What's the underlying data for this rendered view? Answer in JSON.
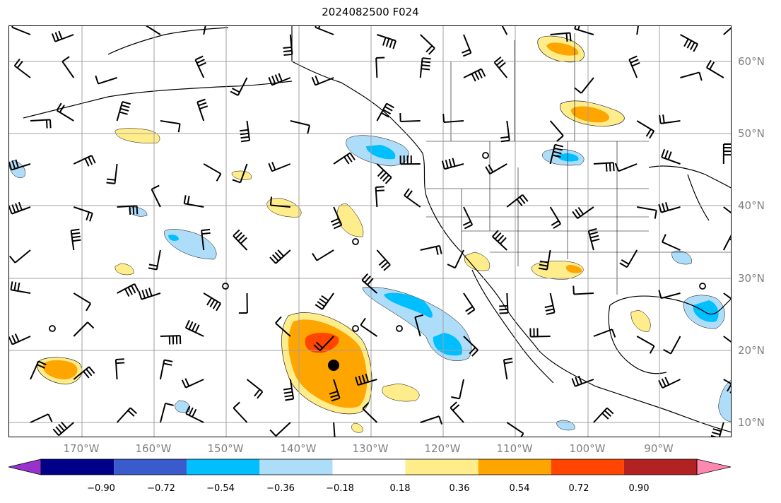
{
  "title": "2024082500 F024",
  "lat_labels": [
    "60°N",
    "50°N",
    "40°N",
    "30°N",
    "20°N",
    "10°N"
  ],
  "lon_labels": [
    "170°W",
    "160°W",
    "150°W",
    "140°W",
    "130°W",
    "120°W",
    "110°W",
    "100°W",
    "90°W"
  ],
  "colorbar": {
    "colors": [
      "#9932cc",
      "#00008b",
      "#3a5bcc",
      "#00bfff",
      "#aeddfa",
      "#ffffff",
      "#ffec8b",
      "#ffa500",
      "#ff4500",
      "#b22222",
      "#ff88b0"
    ],
    "tick_labels": [
      "−0.90",
      "−0.72",
      "−0.54",
      "−0.36",
      "−0.18",
      "0.18",
      "0.36",
      "0.54",
      "0.72",
      "0.90"
    ],
    "extend": "both"
  },
  "map": {
    "projection": "PlateCarree",
    "lon_range": [
      -180,
      -80
    ],
    "lat_range": [
      8,
      65
    ],
    "gridlines": true,
    "wind_barbs": true,
    "tropical_storm_marker": {
      "lon": -135,
      "lat": 18
    }
  }
}
